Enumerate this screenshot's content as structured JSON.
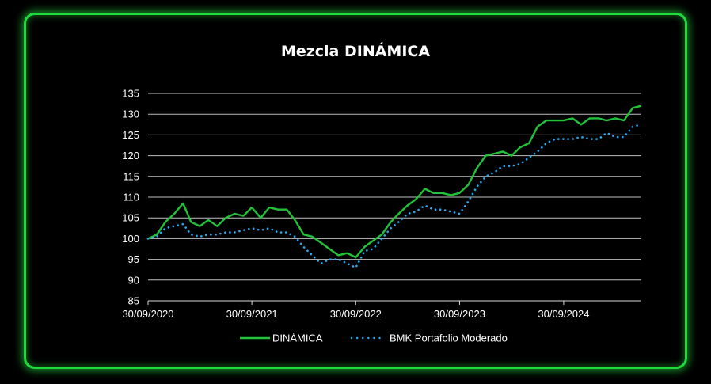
{
  "chart_data": {
    "type": "line",
    "title": "Mezcla DINÁMICA",
    "xlabel": "",
    "ylabel": "",
    "x_ticks": [
      "30/09/2020",
      "30/09/2021",
      "30/09/2022",
      "30/09/2023",
      "30/09/2024"
    ],
    "y_ticks": [
      85,
      90,
      95,
      100,
      105,
      110,
      115,
      120,
      125,
      130,
      135
    ],
    "ylim": [
      85,
      135
    ],
    "xlim": [
      "2020-09-30",
      "2025-06-30"
    ],
    "grid": "horizontal",
    "legend": "bottom-center",
    "x": [
      "2020-09-30",
      "2020-10-31",
      "2020-11-30",
      "2020-12-31",
      "2021-01-31",
      "2021-02-28",
      "2021-03-31",
      "2021-04-30",
      "2021-05-31",
      "2021-06-30",
      "2021-07-31",
      "2021-08-31",
      "2021-09-30",
      "2021-10-31",
      "2021-11-30",
      "2021-12-31",
      "2022-01-31",
      "2022-02-28",
      "2022-03-31",
      "2022-04-30",
      "2022-05-31",
      "2022-06-30",
      "2022-07-31",
      "2022-08-31",
      "2022-09-30",
      "2022-10-31",
      "2022-11-30",
      "2022-12-31",
      "2023-01-31",
      "2023-02-28",
      "2023-03-31",
      "2023-04-30",
      "2023-05-31",
      "2023-06-30",
      "2023-07-31",
      "2023-08-31",
      "2023-09-30",
      "2023-10-31",
      "2023-11-30",
      "2023-12-31",
      "2024-01-31",
      "2024-02-29",
      "2024-03-31",
      "2024-04-30",
      "2024-05-31",
      "2024-06-30",
      "2024-07-31",
      "2024-08-31",
      "2024-09-30",
      "2024-10-31",
      "2024-11-30",
      "2024-12-31",
      "2025-01-31",
      "2025-02-28",
      "2025-03-31",
      "2025-04-30",
      "2025-05-31",
      "2025-06-30"
    ],
    "series": [
      {
        "name": "DINÁMICA",
        "color": "#22c33a",
        "style": "solid",
        "values": [
          100,
          101,
          104,
          106,
          108.5,
          104,
          103,
          104.5,
          103,
          105,
          106,
          105.5,
          107.5,
          105,
          107.5,
          107,
          107,
          104.5,
          101,
          100.5,
          99,
          97.5,
          96,
          96.5,
          95.5,
          98,
          99.5,
          101,
          104,
          106,
          108,
          109.5,
          112,
          111,
          111,
          110.5,
          111,
          113,
          117,
          120,
          120.5,
          121,
          120,
          122,
          123,
          127,
          128.5,
          128.5,
          128.5,
          129,
          127.5,
          129,
          129,
          128.5,
          129,
          128.5,
          131.5,
          132
        ]
      },
      {
        "name": "BMK Portafolio Moderado",
        "color": "#2aa8f0",
        "style": "dotted",
        "values": [
          100,
          100.5,
          102.5,
          103,
          103.5,
          101,
          100.5,
          101,
          101,
          101.5,
          101.5,
          102,
          102.5,
          102,
          102.5,
          101.5,
          101.5,
          100.5,
          98,
          96,
          94,
          95,
          95,
          94,
          93,
          97,
          97.5,
          100,
          102.5,
          104,
          106,
          106.5,
          108,
          107,
          107,
          106.5,
          106,
          109,
          112.5,
          115,
          116,
          117.5,
          117.5,
          118,
          119.5,
          121,
          123,
          124,
          124,
          124,
          124.5,
          124,
          124,
          125.5,
          124.5,
          124.5,
          127,
          127.5
        ]
      }
    ]
  }
}
